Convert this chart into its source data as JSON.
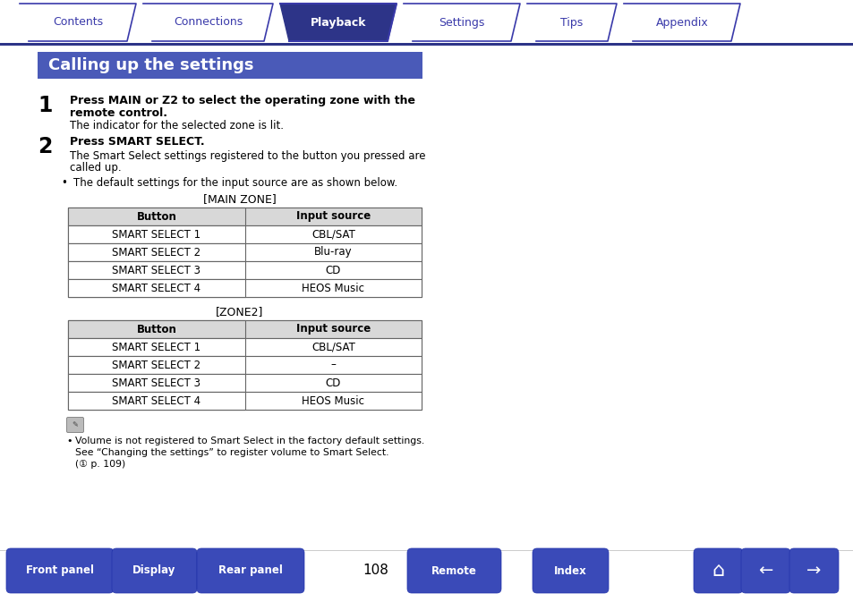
{
  "bg_color": "#ffffff",
  "tab_labels": [
    "Contents",
    "Connections",
    "Playback",
    "Settings",
    "Tips",
    "Appendix"
  ],
  "active_tab": 2,
  "tab_color_active": "#2d3488",
  "tab_color_inactive": "#ffffff",
  "tab_text_color_active": "#ffffff",
  "tab_text_color_inactive": "#3a3aaa",
  "tab_border_color": "#3a3aaa",
  "header_bg": "#4a5ab8",
  "header_text": "Calling up the settings",
  "header_text_color": "#ffffff",
  "step1_bold_line1": "Press MAIN or Z2 to select the operating zone with the",
  "step1_bold_line2": "remote control.",
  "step1_normal": "The indicator for the selected zone is lit.",
  "step2_bold": "Press SMART SELECT.",
  "step2_normal_line1": "The Smart Select settings registered to the button you pressed are",
  "step2_normal_line2": "called up.",
  "bullet_text": "The default settings for the input source are as shown below.",
  "table1_title": "[MAIN ZONE]",
  "table1_headers": [
    "Button",
    "Input source"
  ],
  "table1_rows": [
    [
      "SMART SELECT 1",
      "CBL/SAT"
    ],
    [
      "SMART SELECT 2",
      "Blu-ray"
    ],
    [
      "SMART SELECT 3",
      "CD"
    ],
    [
      "SMART SELECT 4",
      "HEOS Music"
    ]
  ],
  "table2_title": "[ZONE2]",
  "table2_headers": [
    "Button",
    "Input source"
  ],
  "table2_rows": [
    [
      "SMART SELECT 1",
      "CBL/SAT"
    ],
    [
      "SMART SELECT 2",
      "–"
    ],
    [
      "SMART SELECT 3",
      "CD"
    ],
    [
      "SMART SELECT 4",
      "HEOS Music"
    ]
  ],
  "table_header_bg": "#d8d8d8",
  "table_border_color": "#666666",
  "note_line1": "Volume is not registered to Smart Select in the factory default settings.",
  "note_line2": "See “Changing the settings” to register volume to Smart Select.",
  "note_line3": "(① p. 109)",
  "footer_buttons": [
    "Front panel",
    "Display",
    "Rear panel",
    "Remote",
    "Index"
  ],
  "footer_page": "108",
  "footer_btn_color": "#3a4ab8",
  "footer_text_color": "#ffffff",
  "nav_line_color": "#2d3488",
  "separator_line_color": "#cccccc"
}
